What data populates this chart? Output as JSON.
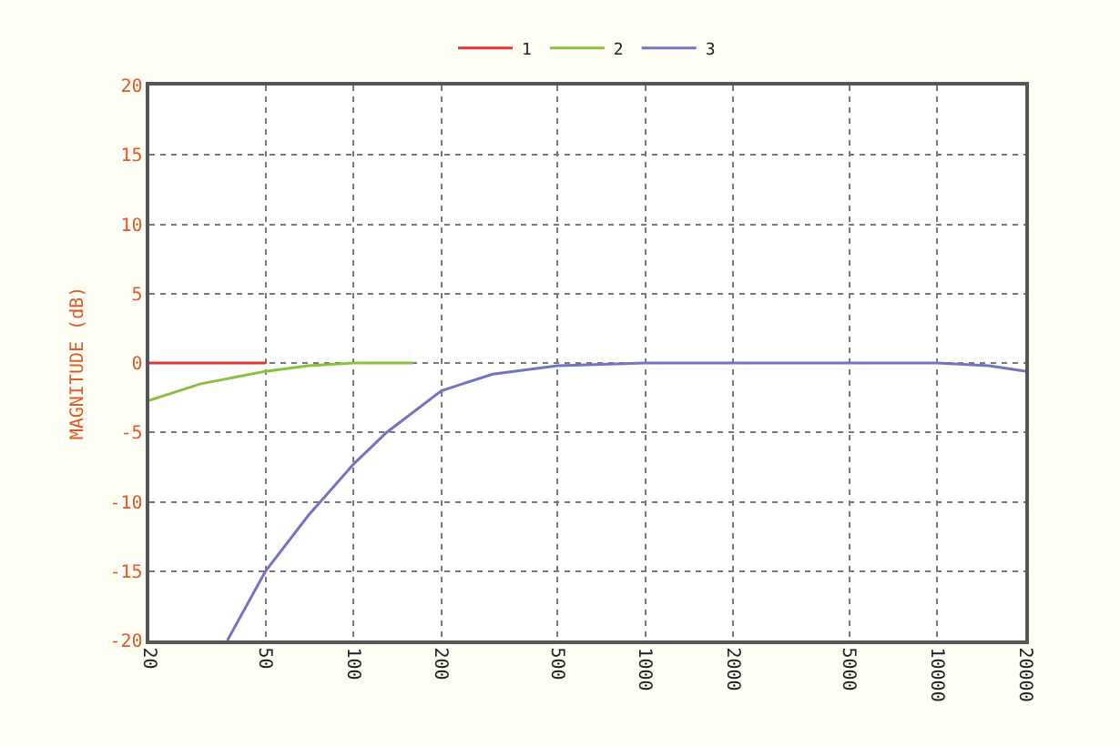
{
  "chart_data": {
    "type": "line",
    "ylabel": "MAGNITUDE (dB)",
    "log": "x",
    "grid": true,
    "legend": "top",
    "xlim": [
      20,
      20000
    ],
    "xticks": [
      20,
      50,
      100,
      200,
      500,
      1000,
      2000,
      5000,
      10000,
      20000
    ],
    "ylim": [
      -20,
      20
    ],
    "yticks": [
      20,
      15,
      10,
      5,
      0,
      -5,
      -10,
      -15,
      -20
    ],
    "series": [
      {
        "name": "1",
        "color": "#e03838",
        "x": [
          20,
          30,
          50
        ],
        "values": [
          0,
          0,
          0
        ]
      },
      {
        "name": "2",
        "color": "#88c040",
        "x": [
          20,
          30,
          50,
          70,
          100,
          160
        ],
        "values": [
          -2.7,
          -1.5,
          -0.6,
          -0.2,
          0,
          0
        ]
      },
      {
        "name": "3",
        "color": "#7474c4",
        "x": [
          37,
          50,
          70,
          100,
          130,
          200,
          300,
          500,
          1000,
          5000,
          10000,
          15000,
          20000
        ],
        "values": [
          -20,
          -15,
          -11,
          -7.3,
          -5,
          -2,
          -0.8,
          -0.2,
          0,
          0,
          0,
          -0.2,
          -0.6
        ]
      }
    ]
  }
}
